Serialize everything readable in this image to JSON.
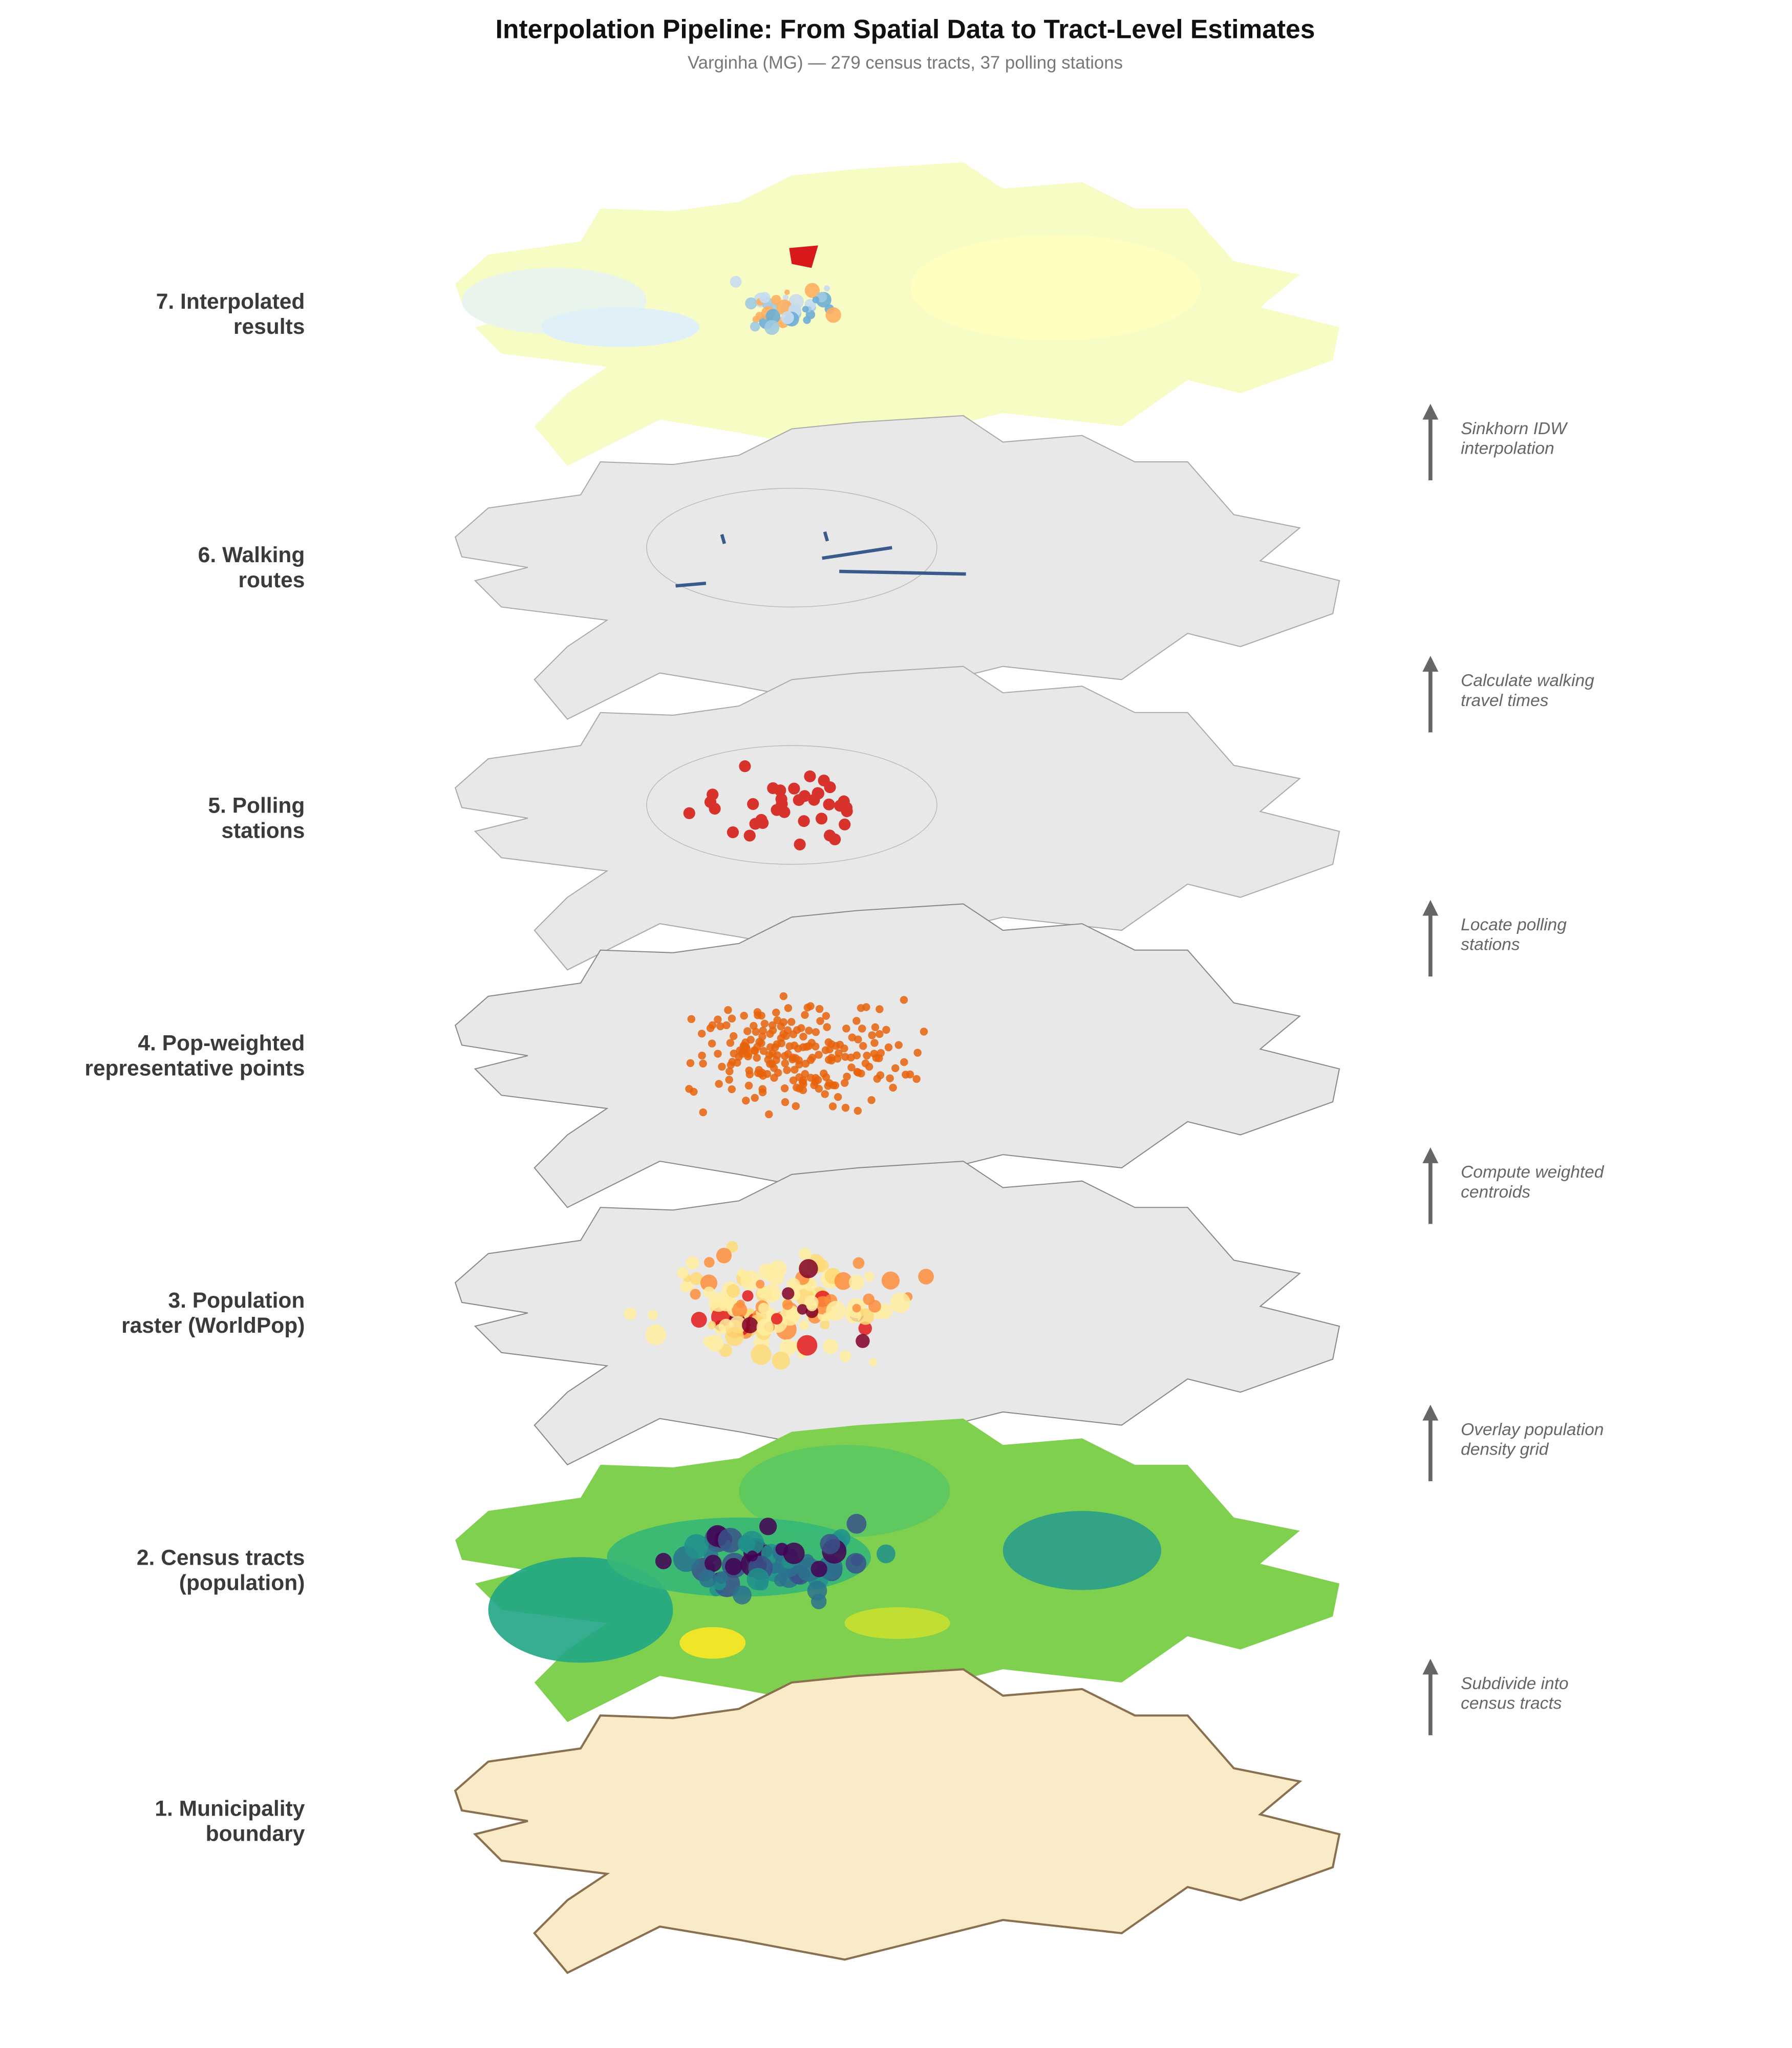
{
  "header": {
    "title": "Interpolation Pipeline: From Spatial Data to Tract-Level Estimates",
    "subtitle": "Varginha (MG) — 279 census tracts, 37 polling stations"
  },
  "layers": [
    {
      "label": [
        "1. Municipality",
        "boundary"
      ]
    },
    {
      "label": [
        "2. Census tracts",
        "(population)"
      ]
    },
    {
      "label": [
        "3. Population",
        "raster (WorldPop)"
      ]
    },
    {
      "label": [
        "4. Pop-weighted",
        "representative points"
      ]
    },
    {
      "label": [
        "5. Polling",
        "stations"
      ]
    },
    {
      "label": [
        "6. Walking",
        "routes"
      ]
    },
    {
      "label": [
        "7. Interpolated",
        "results"
      ]
    }
  ],
  "steps": [
    {
      "label": [
        "Subdivide into",
        "census tracts"
      ]
    },
    {
      "label": [
        "Overlay population",
        "density grid"
      ]
    },
    {
      "label": [
        "Compute weighted",
        "centroids"
      ]
    },
    {
      "label": [
        "Locate polling",
        "stations"
      ]
    },
    {
      "label": [
        "Calculate walking",
        "travel times"
      ]
    },
    {
      "label": [
        "Sinkhorn IDW",
        "interpolation"
      ]
    }
  ]
}
